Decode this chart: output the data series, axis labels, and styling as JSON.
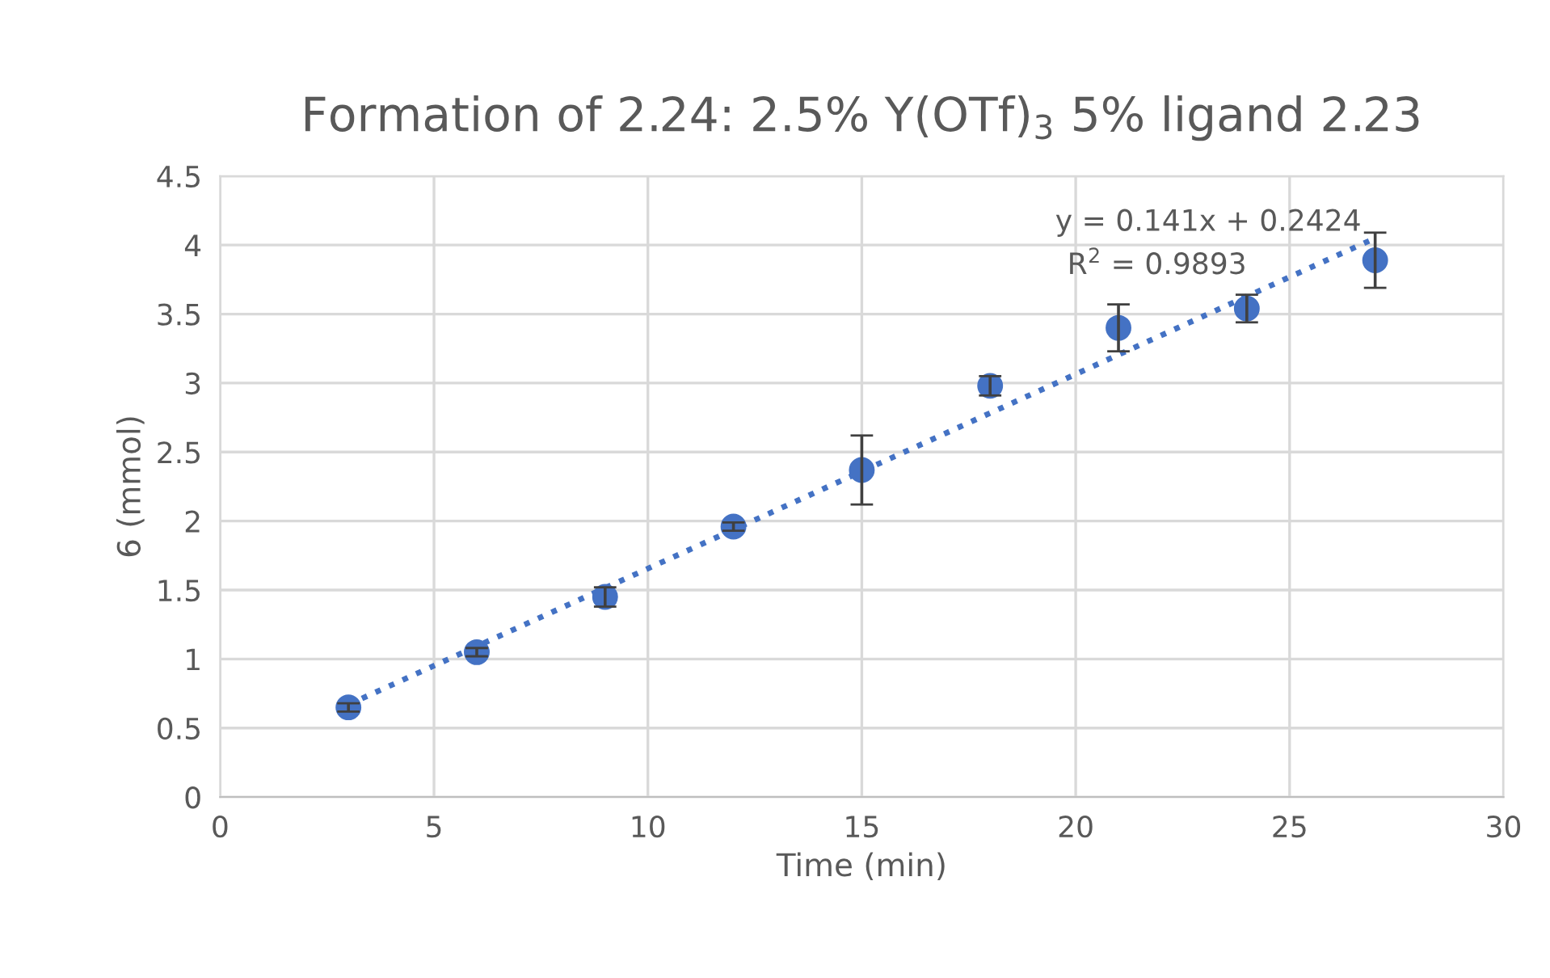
{
  "chart_data": {
    "type": "scatter",
    "title": "Formation of 2.24: 2.5% Y(OTf)$_{3}$ 5% ligand 2.23",
    "xlabel": "Time (min)",
    "ylabel": "6 (mmol)",
    "x": [
      3,
      6,
      9,
      12,
      15,
      18,
      21,
      24,
      27
    ],
    "series": [
      {
        "color": "#4472c4",
        "values": [
          0.65,
          1.05,
          1.45,
          1.96,
          2.37,
          2.98,
          3.4,
          3.54,
          3.89
        ],
        "errors": [
          0.03,
          0.03,
          0.07,
          0.03,
          0.25,
          0.07,
          0.17,
          0.1,
          0.2
        ],
        "marker": "circle"
      },
      {
        "type": "line",
        "color": "#4472c4",
        "x": [
          3,
          27
        ],
        "values": [
          0.67,
          4.05
        ],
        "line_style": "dotted",
        "marker": "none"
      }
    ],
    "annotations": [
      "y = 0.141x + 0.2424",
      "R$^{2}$ = 0.9893"
    ],
    "xlim": [
      0,
      30
    ],
    "xticks": [
      0,
      5,
      10,
      15,
      20,
      25,
      30
    ],
    "ylim": [
      0,
      4.5
    ],
    "yticks": [
      0,
      0.5,
      1,
      1.5,
      2,
      2.5,
      3,
      3.5,
      4,
      4.5
    ],
    "grid": true
  }
}
